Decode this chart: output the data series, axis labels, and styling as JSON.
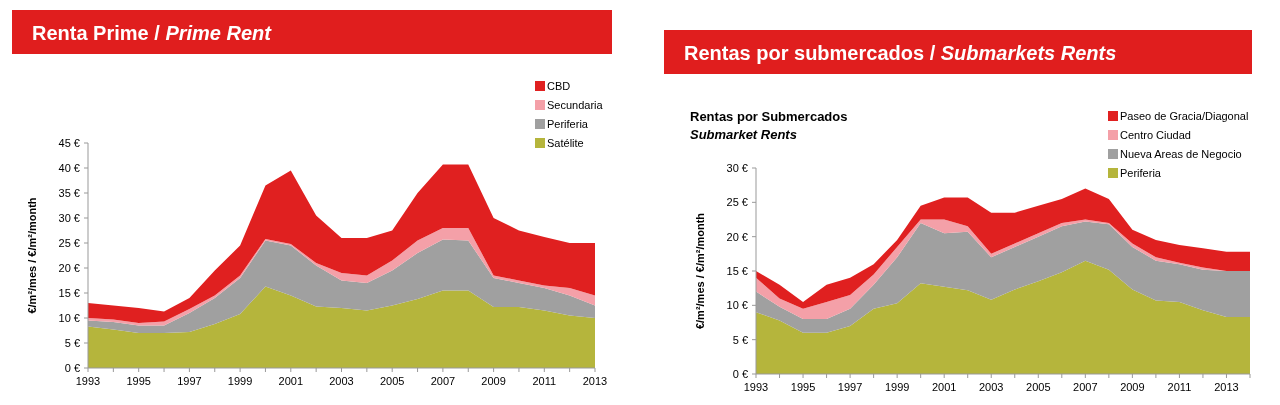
{
  "chart_data": [
    {
      "type": "area",
      "stacked": true,
      "title": "Renta Prime / Prime Rent",
      "ylabel": "€/m²/mes / €/m²/month",
      "x": [
        1993,
        1994,
        1995,
        1996,
        1997,
        1998,
        1999,
        2000,
        2001,
        2002,
        2003,
        2004,
        2005,
        2006,
        2007,
        2008,
        2009,
        2010,
        2011,
        2012,
        2013
      ],
      "xlim": [
        1993,
        2013
      ],
      "xticks": [
        1993,
        1995,
        1997,
        1999,
        2001,
        2003,
        2005,
        2007,
        2009,
        2011,
        2013
      ],
      "ylim": [
        0,
        45
      ],
      "yticks": [
        {
          "value": 0,
          "label": "0 €"
        },
        {
          "value": 5,
          "label": "5 €"
        },
        {
          "value": 10,
          "label": "10 €"
        },
        {
          "value": 15,
          "label": "15 €"
        },
        {
          "value": 20,
          "label": "20 €"
        },
        {
          "value": 25,
          "label": "25 €"
        },
        {
          "value": 30,
          "label": "30 €"
        },
        {
          "value": 35,
          "label": "35 €"
        },
        {
          "value": 40,
          "label": "40 €"
        },
        {
          "value": 45,
          "label": "45 €"
        }
      ],
      "legend": "top right",
      "grid": false,
      "series": [
        {
          "name": "Satélite",
          "color": "#b5b53c",
          "values": [
            8.3,
            7.7,
            7.0,
            7.0,
            7.2,
            8.8,
            10.8,
            16.3,
            14.5,
            12.3,
            12,
            11.5,
            12.5,
            13.8,
            15.5,
            15.5,
            12.2,
            12.2,
            11.5,
            10.5,
            10
          ]
        },
        {
          "name": "Periferia",
          "color": "#a0a0a0",
          "values": [
            1.2,
            1.5,
            1.5,
            1.5,
            3.8,
            5.2,
            7.2,
            9.2,
            10,
            8.2,
            5.5,
            5.5,
            7,
            9.2,
            10.2,
            10,
            5.8,
            4.8,
            4.5,
            4,
            2.5
          ]
        },
        {
          "name": "Secundaria",
          "color": "#f4a0a8",
          "values": [
            0.5,
            0.5,
            0.5,
            0.8,
            0.8,
            0.5,
            0.5,
            0.3,
            0.3,
            0.5,
            1.5,
            1.5,
            2,
            2.5,
            2.3,
            2.5,
            0.5,
            0.5,
            0.5,
            1.5,
            2
          ]
        },
        {
          "name": "CBD",
          "color": "#e02020",
          "values": [
            3,
            2.8,
            3,
            2,
            2.2,
            5,
            6,
            10.7,
            14.7,
            9.5,
            7,
            7.5,
            6,
            9.5,
            12.7,
            12.7,
            11.5,
            10,
            9.7,
            9,
            10.5
          ]
        }
      ]
    },
    {
      "type": "area",
      "stacked": true,
      "title": "Rentas por submercados / Submarkets Rents",
      "subtitle": "Rentas por Submercados\nSubmarket Rents",
      "ylabel": "€/m²/mes / €/m²/month",
      "x": [
        1993,
        1994,
        1995,
        1996,
        1997,
        1998,
        1999,
        2000,
        2001,
        2002,
        2003,
        2004,
        2005,
        2006,
        2007,
        2008,
        2009,
        2010,
        2011,
        2012,
        2013,
        2014
      ],
      "xlim": [
        1993,
        2014
      ],
      "xticks": [
        1993,
        1995,
        1997,
        1999,
        2001,
        2003,
        2005,
        2007,
        2009,
        2011,
        2013
      ],
      "ylim": [
        0,
        30
      ],
      "yticks": [
        {
          "value": 0,
          "label": "0 €"
        },
        {
          "value": 5,
          "label": "5 €"
        },
        {
          "value": 10,
          "label": "10 €"
        },
        {
          "value": 15,
          "label": "15 €"
        },
        {
          "value": 20,
          "label": "20 €"
        },
        {
          "value": 25,
          "label": "25 €"
        },
        {
          "value": 30,
          "label": "30 €"
        }
      ],
      "legend": "top right",
      "grid": false,
      "series": [
        {
          "name": "Periferia",
          "color": "#b5b53c",
          "values": [
            9,
            7.8,
            6,
            6,
            7,
            9.5,
            10.3,
            13.2,
            12.7,
            12.2,
            10.8,
            12.3,
            13.5,
            14.8,
            16.5,
            15.2,
            12.3,
            10.7,
            10.5,
            9.3,
            8.3,
            8.3
          ]
        },
        {
          "name": "Nueva Areas de Negocio",
          "color": "#a0a0a0",
          "values": [
            3,
            2,
            2,
            2,
            2.5,
            3.5,
            6.7,
            8.8,
            7.8,
            8.5,
            6.2,
            6.2,
            6.5,
            6.7,
            5.7,
            6.6,
            6.2,
            5.8,
            5.5,
            5.9,
            6.7,
            6.7
          ]
        },
        {
          "name": "Centro Ciudad",
          "color": "#f4a0a8",
          "values": [
            2,
            1.2,
            1.5,
            2.5,
            2,
            1.5,
            1.5,
            0.5,
            2,
            0.8,
            0.5,
            0.5,
            0.5,
            0.5,
            0.3,
            0.2,
            0.5,
            0.5,
            0.2,
            0.3,
            0,
            0
          ]
        },
        {
          "name": "Paseo de Gracia/Diagonal",
          "color": "#e02020",
          "values": [
            1,
            2,
            1,
            2.5,
            2.5,
            1.5,
            1,
            2,
            3.2,
            4.2,
            6,
            4.5,
            4,
            3.5,
            4.5,
            3.5,
            2,
            2.5,
            2.6,
            2.8,
            2.8,
            2.8
          ]
        }
      ]
    }
  ]
}
